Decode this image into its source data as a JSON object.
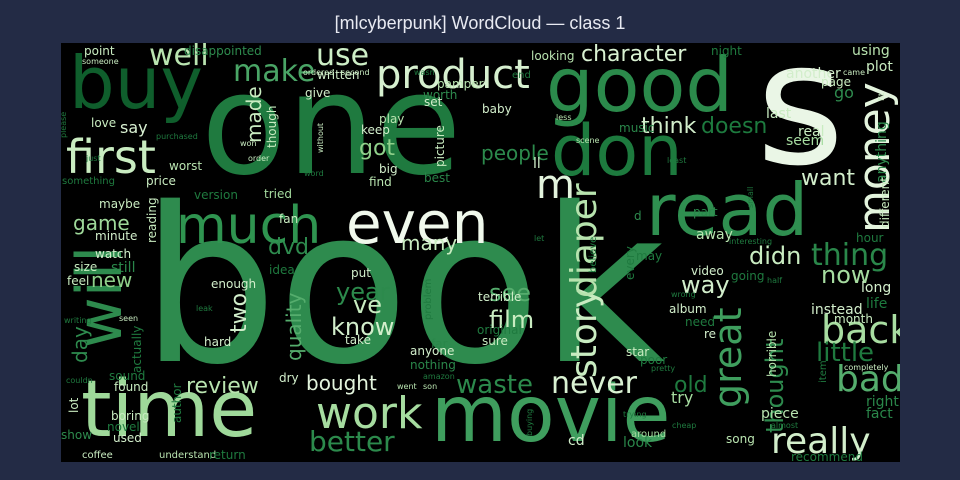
{
  "title": "[mlcyberpunk] WordCloud — class 1",
  "chart_data": {
    "type": "wordcloud",
    "background": "#000000",
    "colormap": "Greens",
    "words": [
      {
        "text": "book",
        "color": "#2e8b4e"
      },
      {
        "text": "one",
        "color": "#1f7a3f"
      },
      {
        "text": "s",
        "color": "#eaf6e6"
      },
      {
        "text": "time",
        "color": "#9fd99a"
      },
      {
        "text": "movie",
        "color": "#3f9e5e"
      },
      {
        "text": "good",
        "color": "#2b8a4b"
      },
      {
        "text": "buy",
        "color": "#0f5e2c"
      },
      {
        "text": "don",
        "color": "#1d7a3e"
      },
      {
        "text": "read",
        "color": "#2f8f50"
      },
      {
        "text": "even",
        "color": "#f0f9ec"
      },
      {
        "text": "will",
        "color": "#2e8b4e"
      },
      {
        "text": "much",
        "color": "#2f9450"
      },
      {
        "text": "work",
        "color": "#a6dca0"
      },
      {
        "text": "first",
        "color": "#c9ecc1"
      },
      {
        "text": "product",
        "color": "#d6f0cf"
      },
      {
        "text": "money",
        "color": "#e3f4dd"
      },
      {
        "text": "really",
        "color": "#d2eecb"
      },
      {
        "text": "story",
        "color": "#c9ecc1"
      },
      {
        "text": "diaper",
        "color": "#b7e3ae"
      },
      {
        "text": "great",
        "color": "#3f9e5e"
      },
      {
        "text": "back",
        "color": "#a8dda1"
      },
      {
        "text": "better",
        "color": "#2c8a4c"
      },
      {
        "text": "never",
        "color": "#d9f1d2"
      },
      {
        "text": "make",
        "color": "#4aa566"
      },
      {
        "text": "well",
        "color": "#b9e4b0"
      },
      {
        "text": "use",
        "color": "#cdeec6"
      },
      {
        "text": "bad",
        "color": "#55ad6d"
      },
      {
        "text": "waste",
        "color": "#2c8a4c"
      },
      {
        "text": "thing",
        "color": "#2a874a"
      },
      {
        "text": "little",
        "color": "#1f7a3f"
      },
      {
        "text": "character",
        "color": "#d9f1d2"
      },
      {
        "text": "m",
        "color": "#e3f4dd"
      },
      {
        "text": "thought",
        "color": "#2e8b4e"
      },
      {
        "text": "year",
        "color": "#2c8a4c"
      },
      {
        "text": "know",
        "color": "#d2eecb"
      },
      {
        "text": "film",
        "color": "#c9ecc1"
      },
      {
        "text": "ve",
        "color": "#c9ecc1"
      },
      {
        "text": "quality",
        "color": "#55ad6d"
      },
      {
        "text": "two",
        "color": "#d2eecb"
      },
      {
        "text": "review",
        "color": "#b9e4b0"
      },
      {
        "text": "game",
        "color": "#9fd99a"
      },
      {
        "text": "new",
        "color": "#8fd08a"
      },
      {
        "text": "day",
        "color": "#2e8b4e"
      },
      {
        "text": "bought",
        "color": "#e3f4dd"
      },
      {
        "text": "think",
        "color": "#d2eecb"
      },
      {
        "text": "doesn",
        "color": "#1d7a3e"
      },
      {
        "text": "want",
        "color": "#d2eecb"
      },
      {
        "text": "got",
        "color": "#8fd08a"
      },
      {
        "text": "people",
        "color": "#2c8a4c"
      },
      {
        "text": "many",
        "color": "#c9ecc1"
      },
      {
        "text": "see",
        "color": "#55ad6d"
      },
      {
        "text": "way",
        "color": "#d2eecb"
      },
      {
        "text": "didn",
        "color": "#c9ecc1"
      },
      {
        "text": "now",
        "color": "#a6dca0"
      },
      {
        "text": "old",
        "color": "#1f7a3f"
      },
      {
        "text": "dvd",
        "color": "#2e8b4e"
      },
      {
        "text": "made",
        "color": "#c9ecc1"
      },
      {
        "text": "say",
        "color": "#d9f1d2"
      },
      {
        "text": "ll",
        "color": "#d2eecb"
      },
      {
        "text": "music",
        "color": "#2a874a"
      },
      {
        "text": "part",
        "color": "#2a874a"
      },
      {
        "text": "away",
        "color": "#b9e4b0"
      },
      {
        "text": "hour",
        "color": "#1f7a3f"
      },
      {
        "text": "long",
        "color": "#d2eecb"
      },
      {
        "text": "life",
        "color": "#1d7a3e"
      },
      {
        "text": "instead",
        "color": "#d2eecb"
      },
      {
        "text": "month",
        "color": "#c9ecc1"
      },
      {
        "text": "horrible",
        "color": "#b7e3ae"
      },
      {
        "text": "piece",
        "color": "#b9e4b0"
      },
      {
        "text": "song",
        "color": "#b9e4b0"
      },
      {
        "text": "cd",
        "color": "#d2eecb"
      },
      {
        "text": "look",
        "color": "#2a874a"
      },
      {
        "text": "around",
        "color": "#a6dca0"
      },
      {
        "text": "try",
        "color": "#a6dca0"
      },
      {
        "text": "fact",
        "color": "#2a874a"
      },
      {
        "text": "right",
        "color": "#2a874a"
      },
      {
        "text": "recommend",
        "color": "#1f7a3f"
      },
      {
        "text": "real",
        "color": "#c9ecc1"
      },
      {
        "text": "seem",
        "color": "#a6dca0"
      },
      {
        "text": "last",
        "color": "#c9ecc1"
      },
      {
        "text": "another",
        "color": "#d2eecb"
      },
      {
        "text": "page",
        "color": "#c9ecc1"
      },
      {
        "text": "go",
        "color": "#2e8b4e"
      },
      {
        "text": "plot",
        "color": "#c9ecc1"
      },
      {
        "text": "using",
        "color": "#b9e4b0"
      },
      {
        "text": "night",
        "color": "#1f7a3f"
      },
      {
        "text": "anything",
        "color": "#2e8b4e"
      },
      {
        "text": "different",
        "color": "#c9ecc1"
      },
      {
        "text": "point",
        "color": "#c9ecc1"
      },
      {
        "text": "disappointed",
        "color": "#2e8b4e"
      },
      {
        "text": "written",
        "color": "#d2eecb"
      },
      {
        "text": "give",
        "color": "#d2eecb"
      },
      {
        "text": "worth",
        "color": "#2e8b4e"
      },
      {
        "text": "pamper",
        "color": "#b9e4b0"
      },
      {
        "text": "baby",
        "color": "#d2eecb"
      },
      {
        "text": "looking",
        "color": "#b9e4b0"
      },
      {
        "text": "love",
        "color": "#c9ecc1"
      },
      {
        "text": "though",
        "color": "#c9ecc1"
      },
      {
        "text": "play",
        "color": "#b9e4b0"
      },
      {
        "text": "keep",
        "color": "#d2eecb"
      },
      {
        "text": "set",
        "color": "#d2eecb"
      },
      {
        "text": "picture",
        "color": "#c9ecc1"
      },
      {
        "text": "big",
        "color": "#d2eecb"
      },
      {
        "text": "find",
        "color": "#b9e4b0"
      },
      {
        "text": "best",
        "color": "#2a874a"
      },
      {
        "text": "worst",
        "color": "#b9e4b0"
      },
      {
        "text": "price",
        "color": "#c9ecc1"
      },
      {
        "text": "version",
        "color": "#1f7a3f"
      },
      {
        "text": "tried",
        "color": "#a6dca0"
      },
      {
        "text": "fan",
        "color": "#c9ecc1"
      },
      {
        "text": "maybe",
        "color": "#c9ecc1"
      },
      {
        "text": "minute",
        "color": "#d2eecb"
      },
      {
        "text": "watch",
        "color": "#d2eecb"
      },
      {
        "text": "reading",
        "color": "#c9ecc1"
      },
      {
        "text": "still",
        "color": "#2a874a"
      },
      {
        "text": "size",
        "color": "#c9ecc1"
      },
      {
        "text": "feel",
        "color": "#c9ecc1"
      },
      {
        "text": "enough",
        "color": "#d2eecb"
      },
      {
        "text": "idea",
        "color": "#1f7a3f"
      },
      {
        "text": "put",
        "color": "#d2eecb"
      },
      {
        "text": "hard",
        "color": "#d2eecb"
      },
      {
        "text": "take",
        "color": "#d2eecb"
      },
      {
        "text": "actually",
        "color": "#1f7a3f"
      },
      {
        "text": "sound",
        "color": "#1f7a3f"
      },
      {
        "text": "found",
        "color": "#c9ecc1"
      },
      {
        "text": "author",
        "color": "#1f7a3f"
      },
      {
        "text": "lot",
        "color": "#c9ecc1"
      },
      {
        "text": "boring",
        "color": "#c9ecc1"
      },
      {
        "text": "novel",
        "color": "#1f7a3f"
      },
      {
        "text": "used",
        "color": "#d2eecb"
      },
      {
        "text": "show",
        "color": "#2e8b4e"
      },
      {
        "text": "coffee",
        "color": "#c9ecc1"
      },
      {
        "text": "understand",
        "color": "#b9e4b0"
      },
      {
        "text": "return",
        "color": "#1f7a3f"
      },
      {
        "text": "dry",
        "color": "#d2eecb"
      },
      {
        "text": "anyone",
        "color": "#d2eecb"
      },
      {
        "text": "nothing",
        "color": "#2a874a"
      },
      {
        "text": "far",
        "color": "#2a874a"
      },
      {
        "text": "sure",
        "color": "#c9ecc1"
      },
      {
        "text": "original",
        "color": "#1f7a3f"
      },
      {
        "text": "terrible",
        "color": "#d2eecb"
      },
      {
        "text": "album",
        "color": "#d2eecb"
      },
      {
        "text": "need",
        "color": "#1f7a3f"
      },
      {
        "text": "re",
        "color": "#d2eecb"
      },
      {
        "text": "video",
        "color": "#d2eecb"
      },
      {
        "text": "star",
        "color": "#c9ecc1"
      },
      {
        "text": "poor",
        "color": "#1f7a3f"
      },
      {
        "text": "every",
        "color": "#1f7a3f"
      },
      {
        "text": "may",
        "color": "#1f7a3f"
      },
      {
        "text": "going",
        "color": "#1f7a3f"
      },
      {
        "text": "d",
        "color": "#2e8b4e"
      },
      {
        "text": "problem",
        "color": "#1f7a3f"
      },
      {
        "text": "believe",
        "color": "#1f7a3f"
      },
      {
        "text": "someone",
        "color": "#c9ecc1"
      },
      {
        "text": "ordered",
        "color": "#c9ecc1"
      },
      {
        "text": "second",
        "color": "#c9ecc1"
      },
      {
        "text": "wasn",
        "color": "#1f7a3f"
      },
      {
        "text": "end",
        "color": "#1f7a3f"
      },
      {
        "text": "less",
        "color": "#b9e4b0"
      },
      {
        "text": "scene",
        "color": "#b9e4b0"
      },
      {
        "text": "purchased",
        "color": "#1f7a3f"
      },
      {
        "text": "order",
        "color": "#c9ecc1"
      },
      {
        "text": "won",
        "color": "#c9ecc1"
      },
      {
        "text": "without",
        "color": "#c9ecc1"
      },
      {
        "text": "word",
        "color": "#1f7a3f"
      },
      {
        "text": "something",
        "color": "#1f7a3f"
      },
      {
        "text": "least",
        "color": "#1f7a3f"
      },
      {
        "text": "small",
        "color": "#1f7a3f"
      },
      {
        "text": "let",
        "color": "#1f7a3f"
      },
      {
        "text": "interesting",
        "color": "#1f7a3f"
      },
      {
        "text": "half",
        "color": "#1f7a3f"
      },
      {
        "text": "wrong",
        "color": "#1f7a3f"
      },
      {
        "text": "completely",
        "color": "#c9ecc1"
      },
      {
        "text": "item",
        "color": "#1f7a3f"
      },
      {
        "text": "pretty",
        "color": "#1f7a3f"
      },
      {
        "text": "trying",
        "color": "#1f7a3f"
      },
      {
        "text": "cheap",
        "color": "#1f7a3f"
      },
      {
        "text": "almost",
        "color": "#1f7a3f"
      },
      {
        "text": "went",
        "color": "#b9e4b0"
      },
      {
        "text": "son",
        "color": "#b9e4b0"
      },
      {
        "text": "amazon",
        "color": "#1f7a3f"
      },
      {
        "text": "seen",
        "color": "#c9ecc1"
      },
      {
        "text": "writing",
        "color": "#1f7a3f"
      },
      {
        "text": "leak",
        "color": "#1f7a3f"
      },
      {
        "text": "couldn",
        "color": "#1f7a3f"
      },
      {
        "text": "came",
        "color": "#c9ecc1"
      },
      {
        "text": "fit",
        "color": "#c9ecc1"
      },
      {
        "text": "please",
        "color": "#1f7a3f"
      },
      {
        "text": "buying",
        "color": "#1f7a3f"
      },
      {
        "text": "just",
        "color": "#1f7a3f"
      }
    ]
  }
}
